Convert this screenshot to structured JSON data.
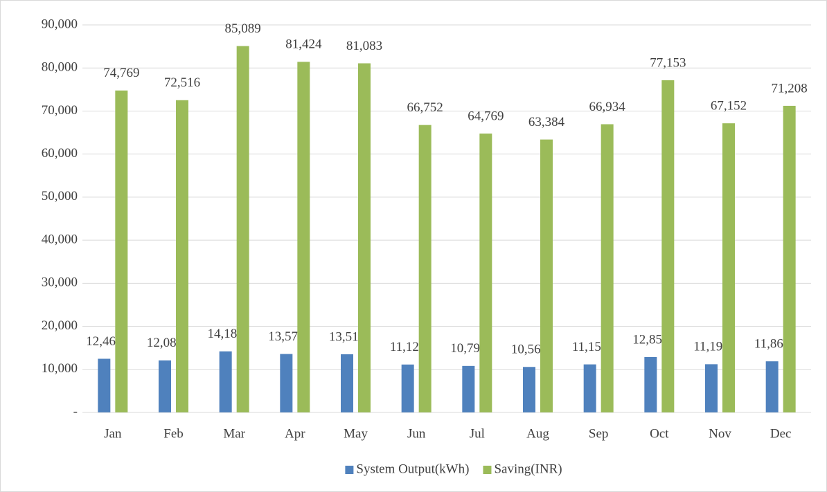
{
  "chart_data": {
    "type": "bar",
    "categories": [
      "Jan",
      "Feb",
      "Mar",
      "Apr",
      "May",
      "Jun",
      "Jul",
      "Aug",
      "Sep",
      "Oct",
      "Nov",
      "Dec"
    ],
    "series": [
      {
        "name": "System Output(kWh)",
        "color": "#4f81bd",
        "values": [
          12462,
          12086,
          14182,
          13571,
          13514,
          11125,
          10795,
          10564,
          11156,
          12859,
          11192,
          11868
        ],
        "value_labels": [
          "12,462",
          "12,086",
          "14,182",
          "13,571",
          "13,514",
          "11,125",
          "10,795",
          "10,564",
          "11,156",
          "12,859",
          "11,192",
          "11,868"
        ]
      },
      {
        "name": "Saving(INR)",
        "color": "#9bbb59",
        "values": [
          74769,
          72516,
          85089,
          81424,
          81083,
          66752,
          64769,
          63384,
          66934,
          77153,
          67152,
          71208
        ],
        "value_labels": [
          "74,769",
          "72,516",
          "85,089",
          "81,424",
          "81,083",
          "66,752",
          "64,769",
          "63,384",
          "66,934",
          "77,153",
          "67,152",
          "71,208"
        ]
      }
    ],
    "ylim": [
      0,
      90000
    ],
    "yticks": [
      {
        "value": 0,
        "label": "-"
      },
      {
        "value": 10000,
        "label": "10,000"
      },
      {
        "value": 20000,
        "label": "20,000"
      },
      {
        "value": 30000,
        "label": "30,000"
      },
      {
        "value": 40000,
        "label": "40,000"
      },
      {
        "value": 50000,
        "label": "50,000"
      },
      {
        "value": 60000,
        "label": "60,000"
      },
      {
        "value": 70000,
        "label": "70,000"
      },
      {
        "value": 80000,
        "label": "80,000"
      },
      {
        "value": 90000,
        "label": "90,000"
      }
    ],
    "grid": true,
    "legend": "bottom"
  }
}
